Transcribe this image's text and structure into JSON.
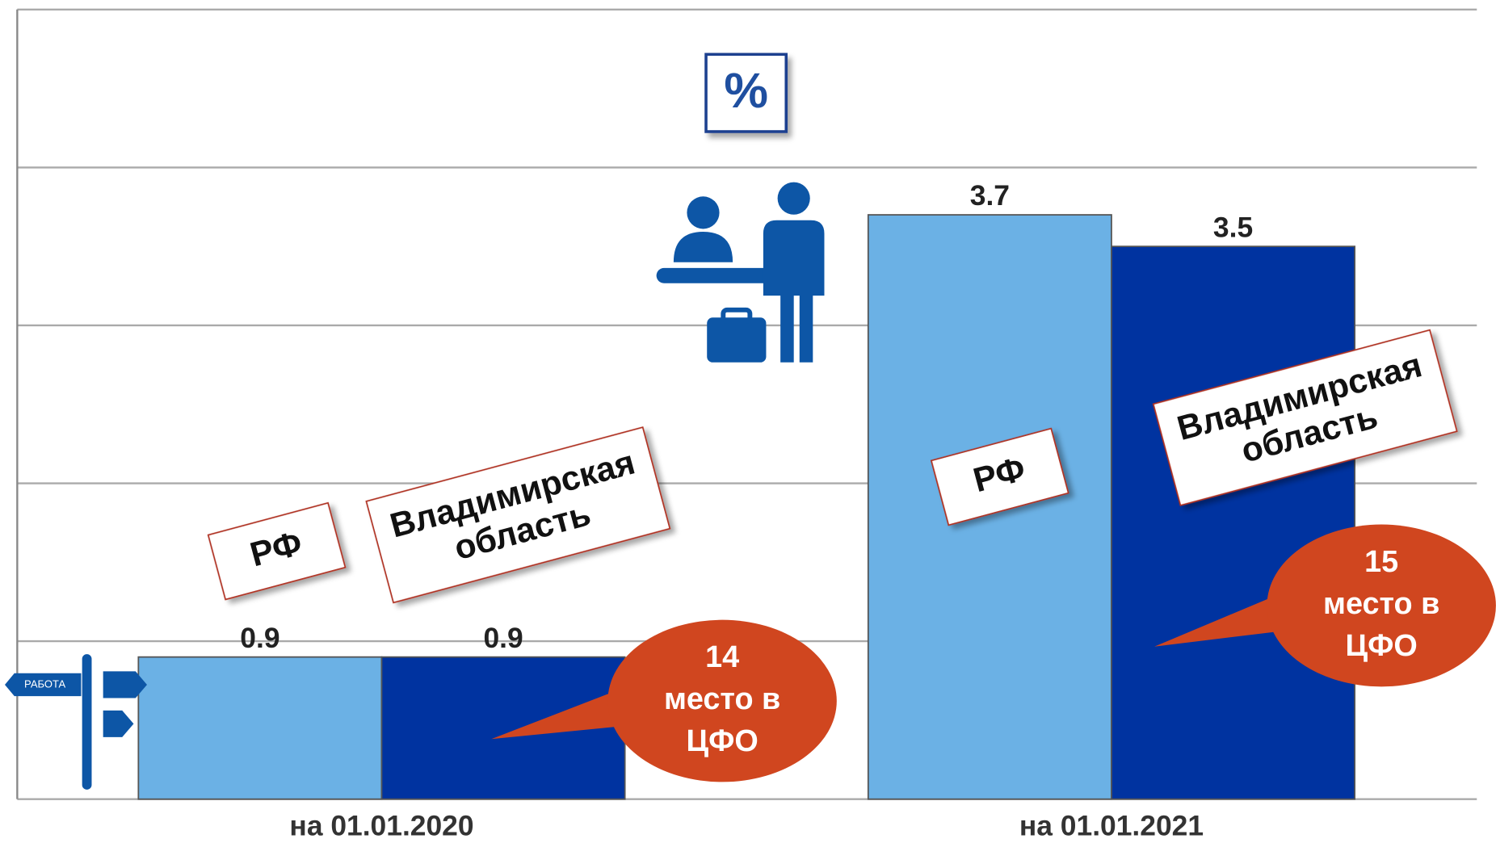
{
  "chart_data": {
    "type": "bar",
    "unit": "%",
    "sign_text": "РАБОТА",
    "categories": [
      "на 01.01.2020",
      "на 01.01.2021"
    ],
    "series": [
      {
        "name": "РФ",
        "color": "#6bb1e5",
        "values": [
          0.9,
          3.7
        ]
      },
      {
        "name": "Владимирская область",
        "color": "#0033a0",
        "values": [
          0.9,
          3.5
        ]
      }
    ],
    "annotations": [
      [
        "14",
        "место в",
        "ЦФО"
      ],
      [
        "15",
        "место в",
        "ЦФО"
      ]
    ],
    "annotation_color": "#d0461f",
    "ylim": [
      0,
      5
    ],
    "yticks": [
      0,
      1,
      2,
      3,
      4,
      5
    ],
    "grid": true
  }
}
